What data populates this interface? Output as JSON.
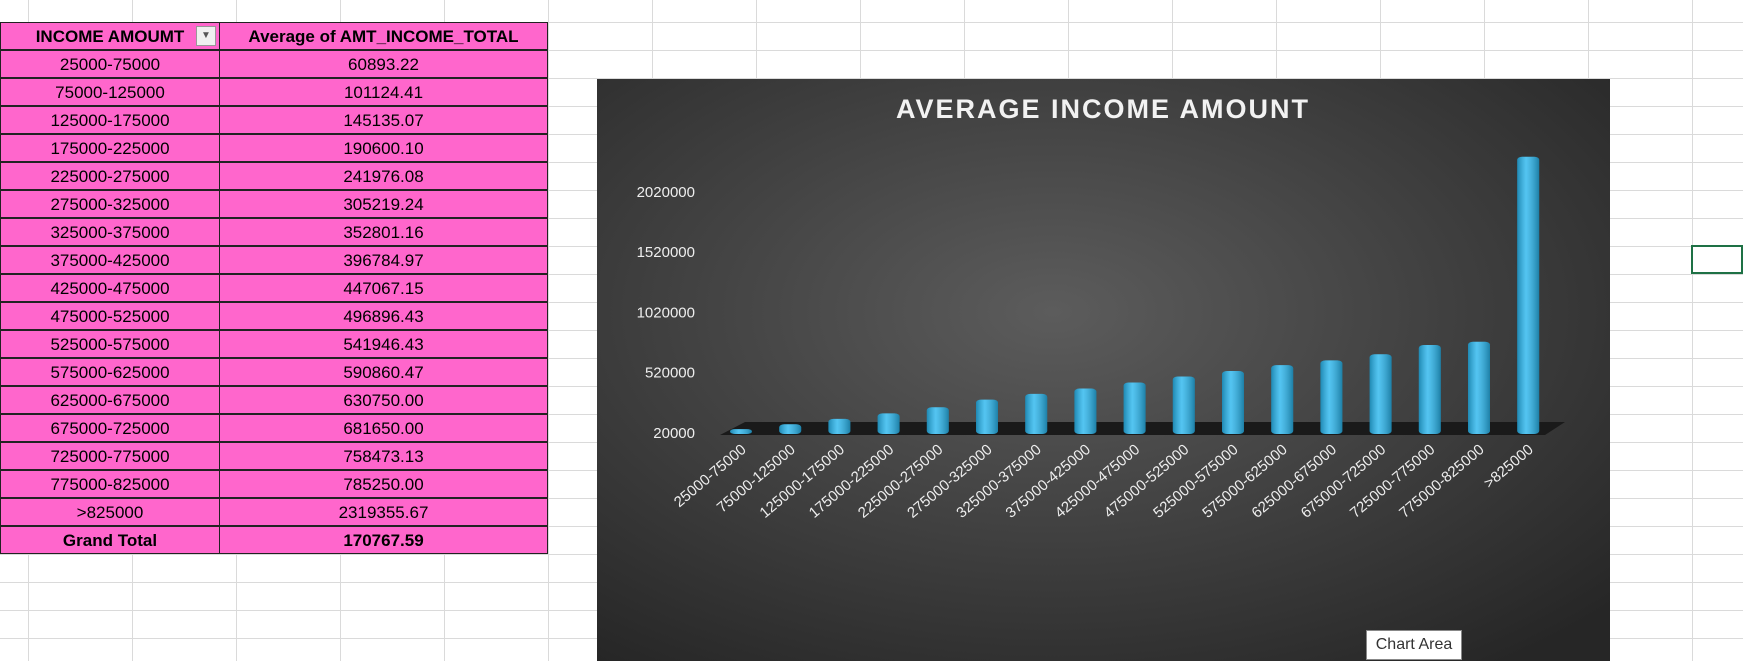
{
  "table": {
    "header": [
      "INCOME AMOUMT",
      "Average of AMT_INCOME_TOTAL"
    ],
    "rows": [
      [
        "25000-75000",
        "60893.22"
      ],
      [
        "75000-125000",
        "101124.41"
      ],
      [
        "125000-175000",
        "145135.07"
      ],
      [
        "175000-225000",
        "190600.10"
      ],
      [
        "225000-275000",
        "241976.08"
      ],
      [
        "275000-325000",
        "305219.24"
      ],
      [
        "325000-375000",
        "352801.16"
      ],
      [
        "375000-425000",
        "396784.97"
      ],
      [
        "425000-475000",
        "447067.15"
      ],
      [
        "475000-525000",
        "496896.43"
      ],
      [
        "525000-575000",
        "541946.43"
      ],
      [
        "575000-625000",
        "590860.47"
      ],
      [
        "625000-675000",
        "630750.00"
      ],
      [
        "675000-725000",
        "681650.00"
      ],
      [
        "725000-775000",
        "758473.13"
      ],
      [
        "775000-825000",
        "785250.00"
      ],
      [
        ">825000",
        "2319355.67"
      ]
    ],
    "total": [
      "Grand Total",
      "170767.59"
    ]
  },
  "chart_data": {
    "type": "bar",
    "title": "AVERAGE INCOME AMOUNT",
    "categories": [
      "25000-75000",
      "75000-125000",
      "125000-175000",
      "175000-225000",
      "225000-275000",
      "275000-325000",
      "325000-375000",
      "375000-425000",
      "425000-475000",
      "475000-525000",
      "525000-575000",
      "575000-625000",
      "625000-675000",
      "675000-725000",
      "725000-775000",
      "775000-825000",
      ">825000"
    ],
    "values": [
      60893.22,
      101124.41,
      145135.07,
      190600.1,
      241976.08,
      305219.24,
      352801.16,
      396784.97,
      447067.15,
      496896.43,
      541946.43,
      590860.47,
      630750.0,
      681650.0,
      758473.13,
      785250.0,
      2319355.67
    ],
    "color": "#29b6ee",
    "ylim": [
      20000,
      2520000
    ],
    "yticks": [
      20000,
      520000,
      1020000,
      1520000,
      2020000
    ],
    "grid": false
  },
  "tooltip": "Chart Area"
}
